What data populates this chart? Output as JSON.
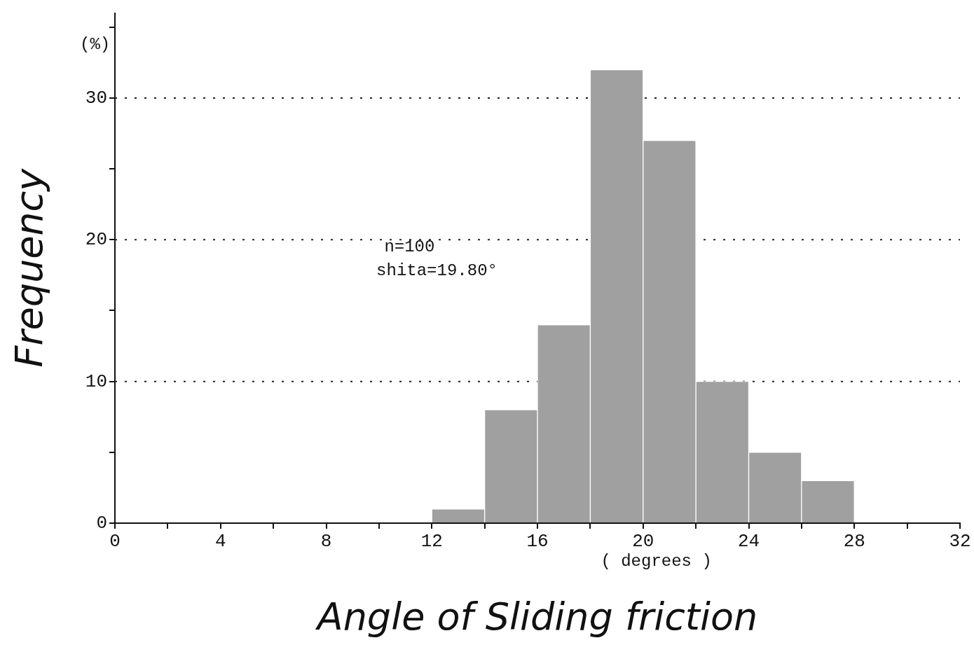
{
  "chart_data": {
    "type": "histogram",
    "xlabel": "Angle of Sliding friction",
    "ylabel": "Frequency",
    "bins": [
      12,
      14,
      16,
      18,
      20,
      22,
      24,
      26,
      28
    ],
    "values": [
      1,
      8,
      14,
      32,
      27,
      10,
      5,
      3
    ],
    "color": "#a0a0a0",
    "xlim": [
      0,
      32
    ],
    "xticks": [
      0,
      {
        "value": 2,
        "label": null
      },
      4,
      {
        "value": 6,
        "label": null
      },
      8,
      {
        "value": 10,
        "label": null
      },
      12,
      {
        "value": 14,
        "label": null
      },
      16,
      {
        "value": 18,
        "label": null
      },
      20,
      {
        "value": 22,
        "label": null
      },
      24,
      {
        "value": 26,
        "label": null
      },
      28,
      {
        "value": 30,
        "label": null
      },
      32
    ],
    "ylim": [
      0,
      36
    ],
    "yticks": [
      0,
      {
        "value": 5,
        "label": null
      },
      10,
      {
        "value": 15,
        "label": null
      },
      20,
      {
        "value": 25,
        "label": null
      },
      30,
      {
        "value": 35,
        "label": null
      }
    ],
    "grid": "y",
    "legend": false,
    "annotations": [
      "(%)",
      "( degrees )",
      "n=100",
      "shita=19.80°"
    ]
  }
}
